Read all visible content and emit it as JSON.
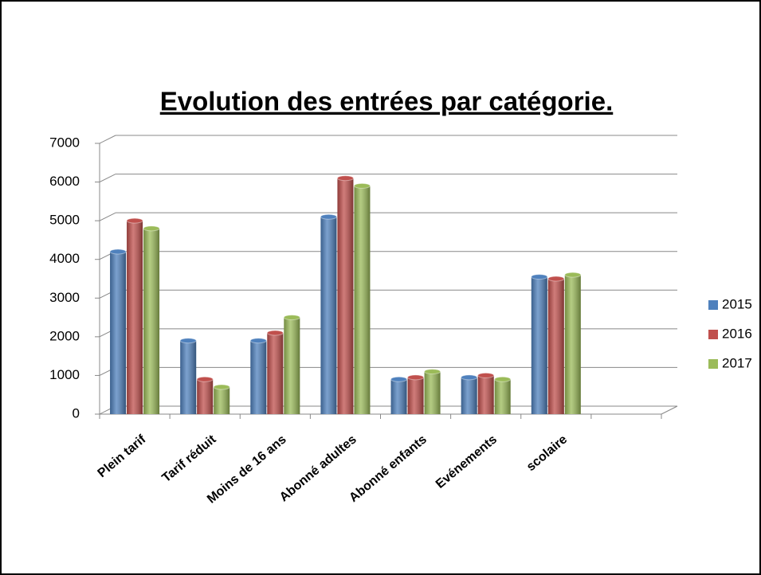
{
  "chart_data": {
    "type": "bar",
    "title": "Evolution des entrées par catégorie.",
    "categories": [
      "Plein tarif",
      "Tarif réduit",
      "Moins de 16 ans",
      "Abonné adultes",
      "Abonné enfants",
      "Evénements",
      "scolaire",
      null
    ],
    "series": [
      {
        "name": "2015",
        "color": "#4f81bd",
        "values": [
          4200,
          1900,
          1900,
          5100,
          900,
          950,
          3550,
          null
        ]
      },
      {
        "name": "2016",
        "color": "#c0504d",
        "values": [
          5000,
          900,
          2100,
          6100,
          950,
          1000,
          3500,
          null
        ]
      },
      {
        "name": "2017",
        "color": "#9bbb59",
        "values": [
          4800,
          700,
          2500,
          5900,
          1100,
          900,
          3600,
          null
        ]
      }
    ],
    "ylim": [
      0,
      7000
    ],
    "yticks": [
      0,
      1000,
      2000,
      3000,
      4000,
      5000,
      6000,
      7000
    ],
    "grid": true,
    "legend": "right"
  }
}
